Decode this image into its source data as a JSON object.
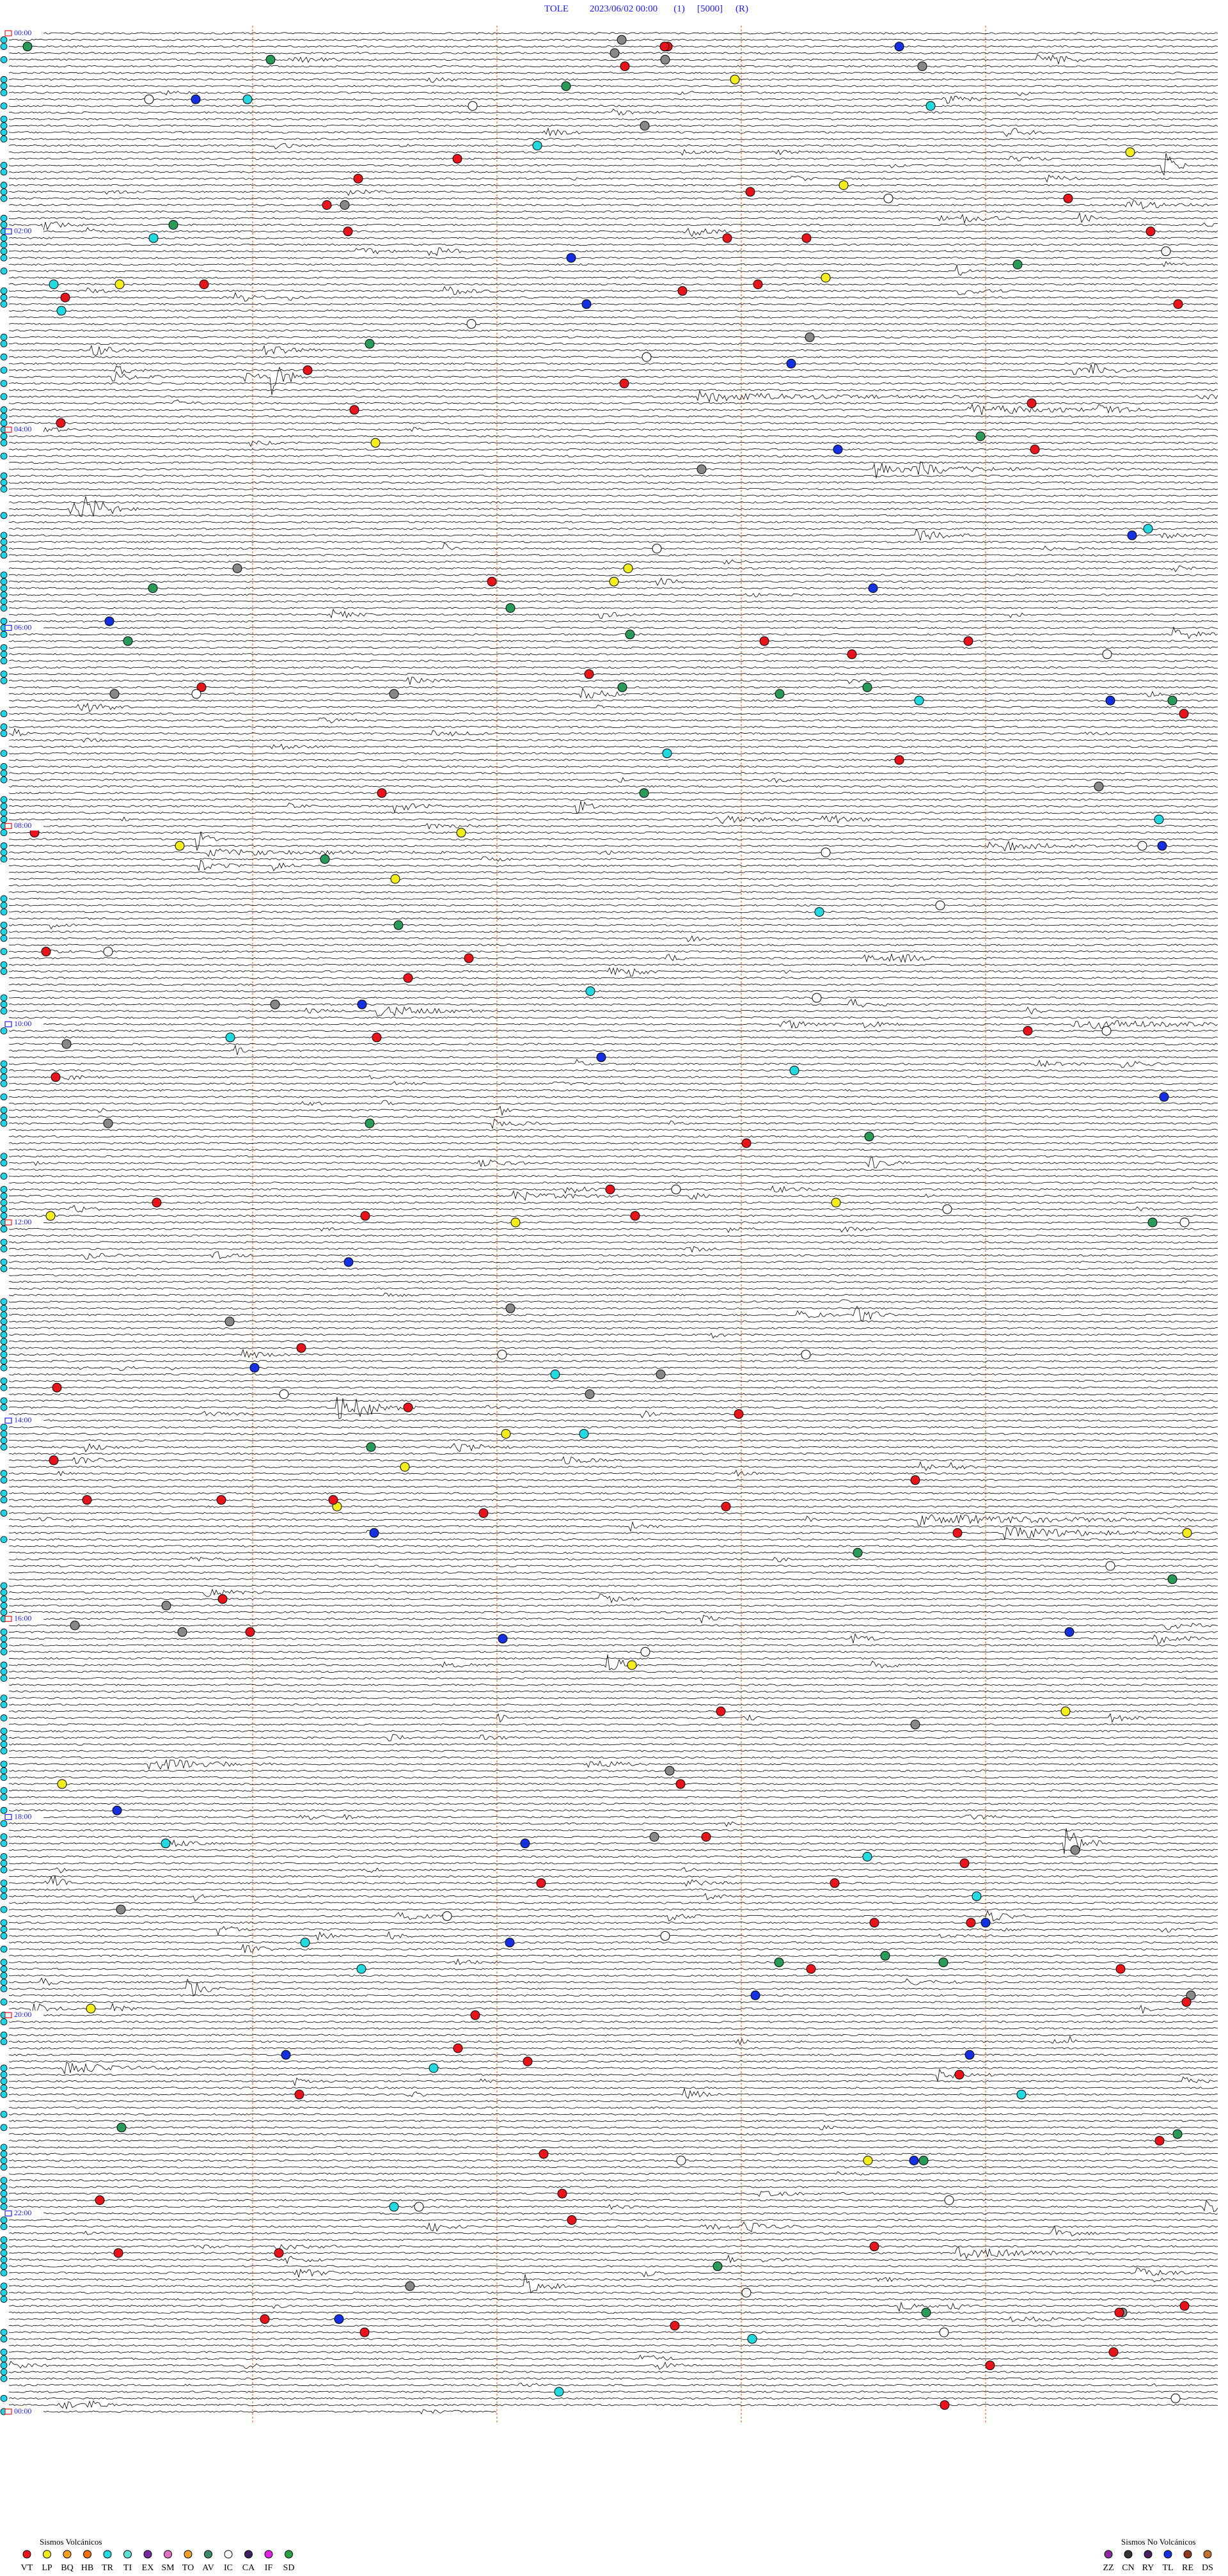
{
  "header": {
    "items": [
      "TOLE",
      "2023/06/02 00:00",
      "(1)",
      "[5000]",
      "(R)"
    ]
  },
  "time_labels": [
    "00:00",
    "02:00",
    "04:00",
    "06:00",
    "08:00",
    "10:00",
    "12:00",
    "14:00",
    "16:00",
    "18:00",
    "20:00",
    "22:00",
    "00:00"
  ],
  "legend_volcanic": {
    "title": "Sismos Volcánicos",
    "codes": [
      "VT",
      "LP",
      "BQ",
      "HB",
      "TR",
      "TI",
      "EX",
      "SM",
      "TO",
      "AV",
      "IC",
      "CA",
      "IF",
      "SD"
    ]
  },
  "legend_non_volcanic": {
    "title": "Sismos No Volcánicos",
    "codes": [
      "ZZ",
      "CN",
      "RY",
      "TL",
      "RE",
      "DS"
    ]
  }
}
